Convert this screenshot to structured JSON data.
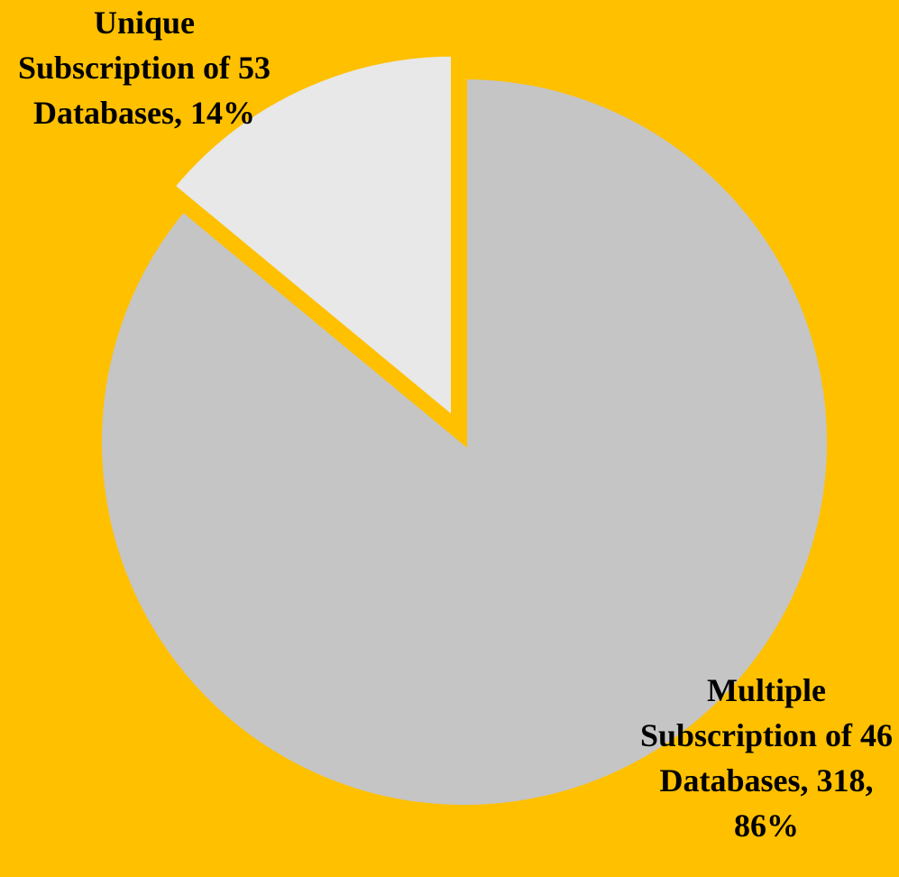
{
  "chart_data": {
    "type": "pie",
    "categories": [
      "Multiple Subscription of 46 Databases",
      "Unique Subscription of 53 Databases"
    ],
    "values": [
      86,
      14
    ],
    "value_labels": [
      "318, 86%",
      "14%"
    ],
    "colors": [
      "#c5c5c5",
      "#e8e8e8"
    ],
    "background": "#ffc000"
  }
}
